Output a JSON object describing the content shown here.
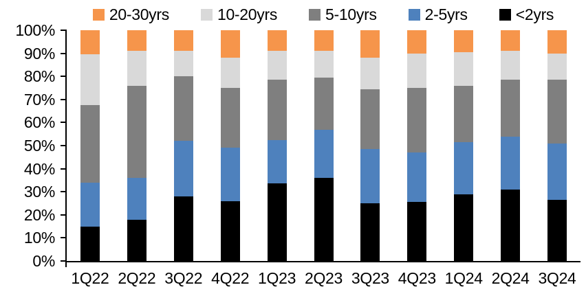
{
  "chart_data": {
    "type": "bar",
    "subtype": "percent-stacked-column",
    "title": "",
    "xlabel": "",
    "ylabel": "",
    "ylim": [
      0,
      100
    ],
    "grid": false,
    "legend_position": "top",
    "y_ticks": [
      "0%",
      "10%",
      "20%",
      "30%",
      "40%",
      "50%",
      "60%",
      "70%",
      "80%",
      "90%",
      "100%"
    ],
    "categories": [
      "1Q22",
      "2Q22",
      "3Q22",
      "4Q22",
      "1Q23",
      "2Q23",
      "3Q23",
      "4Q23",
      "1Q24",
      "2Q24",
      "3Q24"
    ],
    "series": [
      {
        "name": "20-30yrs",
        "color": "#F6954B",
        "values": [
          10.5,
          9,
          9,
          12,
          9,
          9,
          12,
          10,
          9.5,
          9,
          10
        ]
      },
      {
        "name": "10-20yrs",
        "color": "#D9D9D9",
        "values": [
          22,
          15,
          11,
          13,
          12.5,
          11.5,
          13.5,
          15,
          14.5,
          12.5,
          11.5
        ]
      },
      {
        "name": "5-10yrs",
        "color": "#7F7F7F",
        "values": [
          33.5,
          40,
          28,
          26,
          26,
          22.5,
          26,
          28,
          24.5,
          24.5,
          27.5
        ]
      },
      {
        "name": "2-5yrs",
        "color": "#4E81BD",
        "values": [
          19,
          18,
          24,
          23,
          19,
          21,
          23.5,
          21.5,
          22.5,
          23,
          24.5
        ]
      },
      {
        "name": "<2yrs",
        "color": "#000000",
        "values": [
          15,
          18,
          28,
          26,
          33.5,
          36,
          25,
          25.5,
          29,
          31,
          26.5
        ]
      }
    ],
    "axis_color": "#000000",
    "background_color": "#FFFFFF"
  }
}
